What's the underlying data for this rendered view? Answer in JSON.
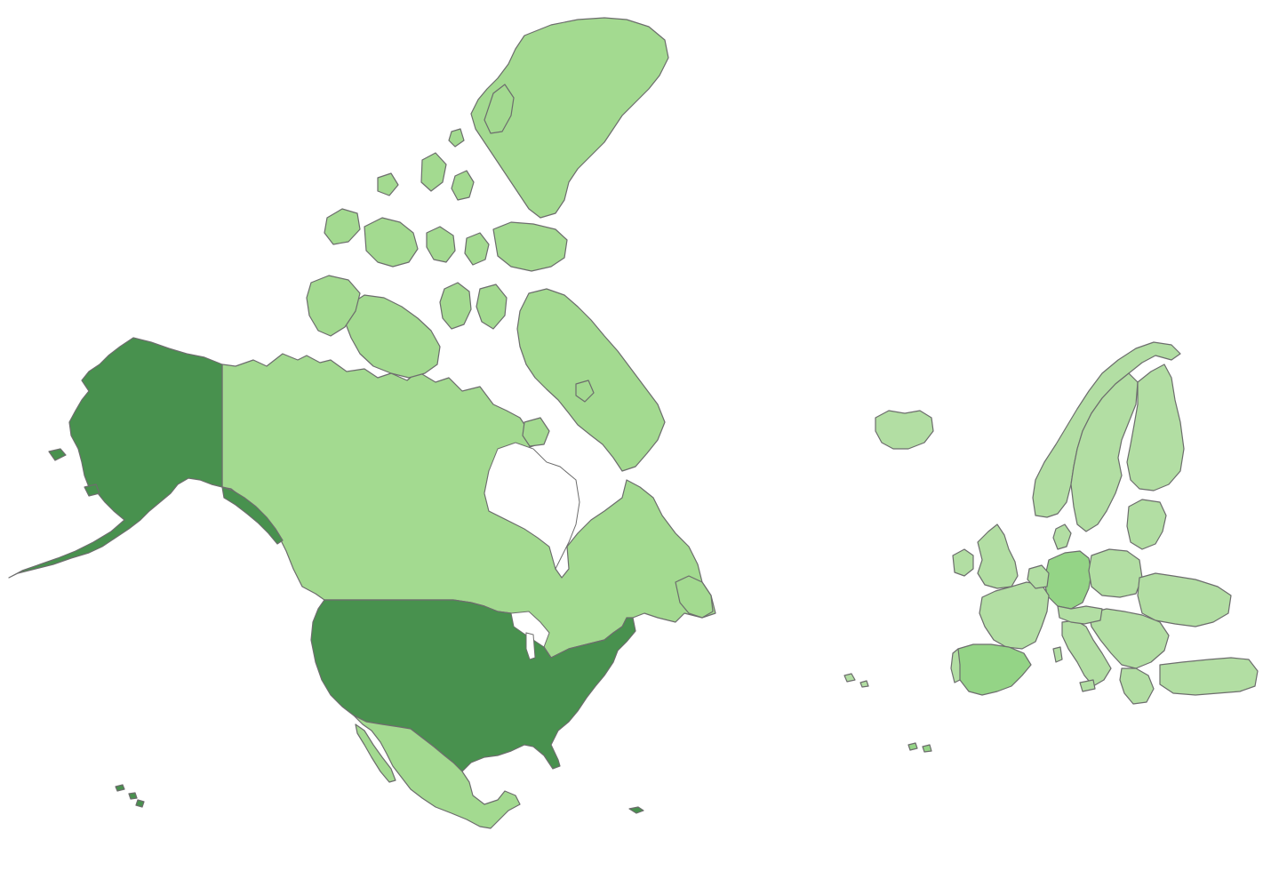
{
  "map": {
    "type": "choropleth",
    "colors": {
      "high": "#48914e",
      "medium": "#94d486",
      "low": "#a3da90",
      "lowest": "#b2dea3",
      "outline": "#6d6d6d",
      "background": "#ffffff"
    },
    "regions": [
      {
        "name": "united-states",
        "level": "high"
      },
      {
        "name": "alaska",
        "level": "high"
      },
      {
        "name": "hawaii",
        "level": "high"
      },
      {
        "name": "canada",
        "level": "low"
      },
      {
        "name": "mexico",
        "level": "low"
      },
      {
        "name": "iceland",
        "level": "lowest"
      },
      {
        "name": "germany",
        "level": "medium"
      },
      {
        "name": "spain",
        "level": "medium"
      },
      {
        "name": "europe-other",
        "level": "lowest"
      }
    ]
  }
}
